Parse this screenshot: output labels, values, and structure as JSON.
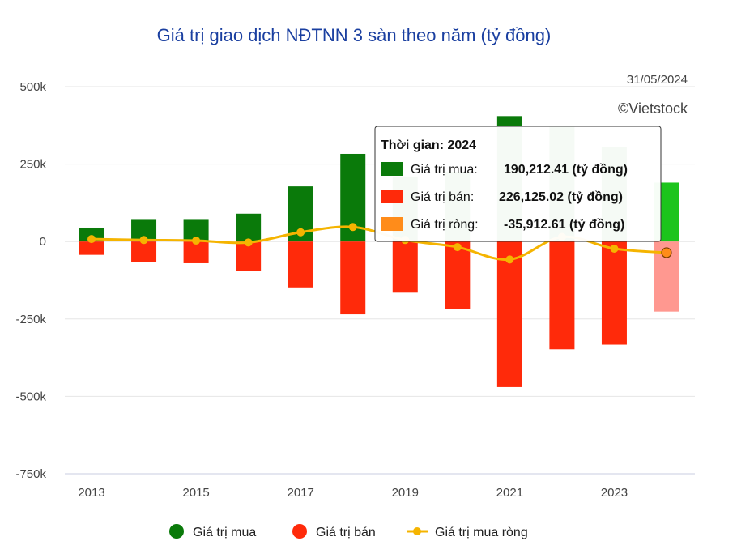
{
  "chart_data": {
    "type": "bar",
    "title": "Giá trị giao dịch NĐTNN 3 sàn theo năm (tỷ đồng)",
    "date_note": "31/05/2024",
    "credit": "©Vietstock",
    "categories": [
      "2013",
      "2014",
      "2015",
      "2016",
      "2017",
      "2018",
      "2019",
      "2020",
      "2021",
      "2022",
      "2023",
      "2024"
    ],
    "x_tick_labels": [
      "2013",
      "2015",
      "2017",
      "2019",
      "2021",
      "2023"
    ],
    "y_tick_labels": [
      "500k",
      "250k",
      "0",
      "-250k",
      "-500k",
      "-750k"
    ],
    "y_ticks": [
      500000,
      250000,
      0,
      -250000,
      -500000,
      -750000
    ],
    "ylim": [
      -750000,
      500000
    ],
    "series": [
      {
        "name": "Giá trị mua",
        "color": "#0a7a0a",
        "highlight_color": "#1cc41c",
        "values": [
          45000,
          70000,
          70000,
          90000,
          178000,
          283000,
          210000,
          225000,
          405000,
          370000,
          305000,
          190212.41
        ]
      },
      {
        "name": "Giá trị bán",
        "color": "#ff2a0a",
        "highlight_color": "#ff9890",
        "values": [
          -43000,
          -65000,
          -70000,
          -95000,
          -148000,
          -235000,
          -165000,
          -217000,
          -470000,
          -348000,
          -333000,
          -226125.02
        ]
      },
      {
        "name": "Giá trị mua ròng",
        "color": "#f5b400",
        "values": [
          8000,
          5000,
          3000,
          -3000,
          30000,
          47000,
          5000,
          -18000,
          -58000,
          15000,
          -23000,
          -35912.61
        ]
      }
    ],
    "highlight_index": 11,
    "legend": {
      "position": "bottom",
      "items": [
        {
          "label": "Giá trị mua",
          "color": "#0a7a0a",
          "marker": "circle"
        },
        {
          "label": "Giá trị bán",
          "color": "#ff2a0a",
          "marker": "circle"
        },
        {
          "label": "Giá trị mua ròng",
          "color": "#f5b400",
          "marker": "line-dot"
        }
      ]
    },
    "tooltip": {
      "header": "Thời gian: 2024",
      "rows": [
        {
          "label": "Giá trị mua:",
          "value": "190,212.41 (tỷ đồng)",
          "color": "#0a7a0a"
        },
        {
          "label": "Giá trị bán:",
          "value": "226,125.02 (tỷ đồng)",
          "color": "#ff2a0a"
        },
        {
          "label": "Giá trị ròng:",
          "value": "-35,912.61 (tỷ đồng)",
          "color": "#ff8c1a"
        }
      ]
    }
  }
}
